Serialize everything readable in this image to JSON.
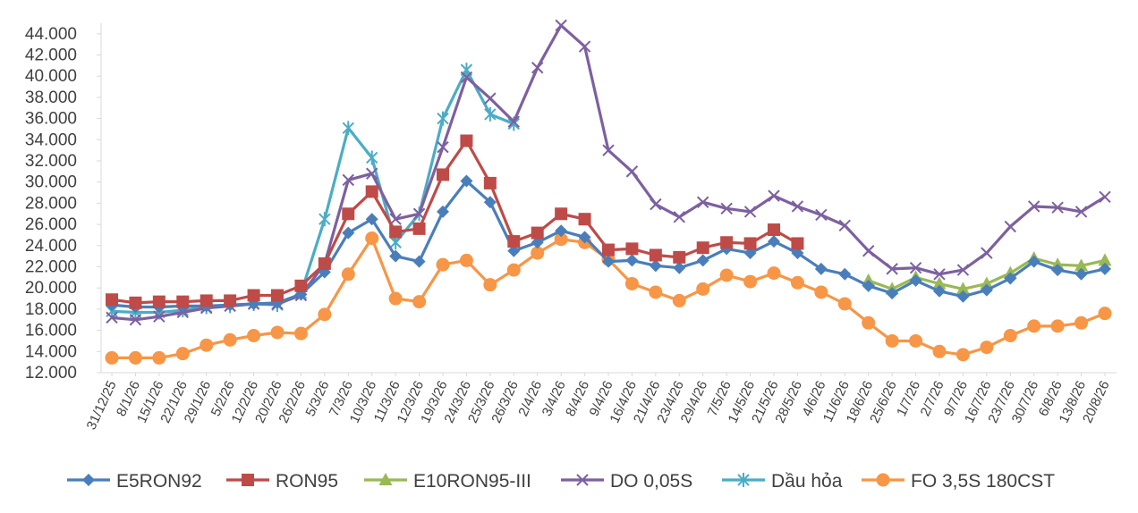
{
  "chart_data": {
    "type": "line",
    "title": "",
    "xlabel": "",
    "ylabel": "",
    "ylim": [
      12000,
      45000
    ],
    "yticks": [
      12000,
      14000,
      16000,
      18000,
      20000,
      22000,
      24000,
      26000,
      28000,
      30000,
      32000,
      34000,
      36000,
      38000,
      40000,
      42000,
      44000
    ],
    "ytick_labels": [
      "12.000",
      "14.000",
      "16.000",
      "18.000",
      "20.000",
      "22.000",
      "24.000",
      "26.000",
      "28.000",
      "30.000",
      "32.000",
      "34.000",
      "36.000",
      "38.000",
      "40.000",
      "42.000",
      "44.000"
    ],
    "categories": [
      "31/12/25",
      "8/1/26",
      "15/1/26",
      "22/1/26",
      "29/1/26",
      "5/2/26",
      "12/2/26",
      "20/2/26",
      "26/2/26",
      "5/3/26",
      "7/3/26",
      "10/3/26",
      "11/3/26",
      "12/3/26",
      "19/3/26",
      "24/3/26",
      "25/3/26",
      "26/3/26",
      "2/4/26",
      "3/4/26",
      "8/4/26",
      "9/4/26",
      "16/4/26",
      "21/4/26",
      "23/4/26",
      "29/4/26",
      "7/5/26",
      "14/5/26",
      "21/5/26",
      "28/5/26",
      "4/6/26",
      "11/6/26",
      "18/6/26",
      "25/6/26",
      "1/7/26",
      "2/7/26",
      "9/7/26",
      "16/7/26",
      "23/7/26",
      "30/7/26",
      "6/8/26",
      "13/8/26",
      "20/8/26"
    ],
    "grid": false,
    "legend_position": "bottom",
    "series": [
      {
        "name": "E5RON92",
        "color": "#4a7ebb",
        "marker": "diamond",
        "values": [
          18400,
          18200,
          18200,
          18300,
          18300,
          18400,
          18500,
          18600,
          19400,
          21500,
          25200,
          26500,
          23000,
          22500,
          27200,
          30100,
          28100,
          23500,
          24300,
          25400,
          24800,
          22500,
          22600,
          22100,
          21900,
          22600,
          23700,
          23300,
          24400,
          23300,
          21800,
          21300,
          20200,
          19500,
          20700,
          19700,
          19200,
          19800,
          20900,
          22500,
          21700,
          21300,
          21800
        ]
      },
      {
        "name": "RON95",
        "color": "#be4b48",
        "marker": "square",
        "values": [
          18900,
          18600,
          18700,
          18700,
          18800,
          18800,
          19300,
          19300,
          20200,
          22300,
          27000,
          29100,
          25300,
          25600,
          30700,
          33900,
          29900,
          24400,
          25200,
          27000,
          26500,
          23600,
          23700,
          23100,
          22900,
          23800,
          24300,
          24200,
          25500,
          24200,
          null,
          null,
          null,
          null,
          null,
          null,
          null,
          null,
          null,
          null,
          null,
          null,
          null
        ]
      },
      {
        "name": "E10RON95-III",
        "color": "#98b954",
        "marker": "triangle",
        "values": [
          null,
          null,
          null,
          null,
          null,
          null,
          null,
          null,
          null,
          null,
          null,
          null,
          null,
          null,
          null,
          null,
          null,
          null,
          null,
          null,
          null,
          null,
          null,
          null,
          null,
          null,
          null,
          null,
          null,
          null,
          null,
          null,
          20700,
          19900,
          21000,
          20400,
          19900,
          20400,
          21400,
          22800,
          22200,
          22100,
          22600
        ]
      },
      {
        "name": "DO 0,05S",
        "color": "#7d60a0",
        "marker": "x",
        "values": [
          17200,
          17000,
          17300,
          17700,
          18100,
          18300,
          18500,
          18500,
          19300,
          22300,
          30200,
          30800,
          26500,
          27000,
          33300,
          39900,
          37900,
          35700,
          40800,
          44800,
          42800,
          33000,
          31000,
          27900,
          26700,
          28100,
          27500,
          27200,
          28700,
          27700,
          26900,
          25900,
          23500,
          21800,
          21900,
          21300,
          21700,
          23300,
          25800,
          27700,
          27600,
          27200,
          28600
        ]
      },
      {
        "name": "Dầu hỏa",
        "color": "#4bacc6",
        "marker": "asterisk",
        "values": [
          17800,
          17700,
          17700,
          17900,
          18200,
          18300,
          18500,
          18400,
          19500,
          26500,
          35100,
          32300,
          24300,
          27000,
          36000,
          40600,
          36400,
          35500,
          null,
          null,
          null,
          null,
          null,
          null,
          null,
          null,
          null,
          null,
          null,
          null,
          null,
          null,
          null,
          null,
          null,
          null,
          null,
          null,
          null,
          null,
          null,
          null,
          null
        ]
      },
      {
        "name": "FO 3,5S 180CST",
        "color": "#f79646",
        "marker": "circle",
        "values": [
          13400,
          13400,
          13400,
          13800,
          14600,
          15100,
          15500,
          15800,
          15700,
          17500,
          21300,
          24700,
          19000,
          18700,
          22200,
          22600,
          20300,
          21700,
          23300,
          24600,
          24300,
          22700,
          20400,
          19600,
          18800,
          19900,
          21200,
          20600,
          21400,
          20500,
          19600,
          18500,
          16700,
          15000,
          15000,
          14000,
          13700,
          14400,
          15500,
          16400,
          16400,
          16700,
          17600
        ]
      }
    ]
  }
}
